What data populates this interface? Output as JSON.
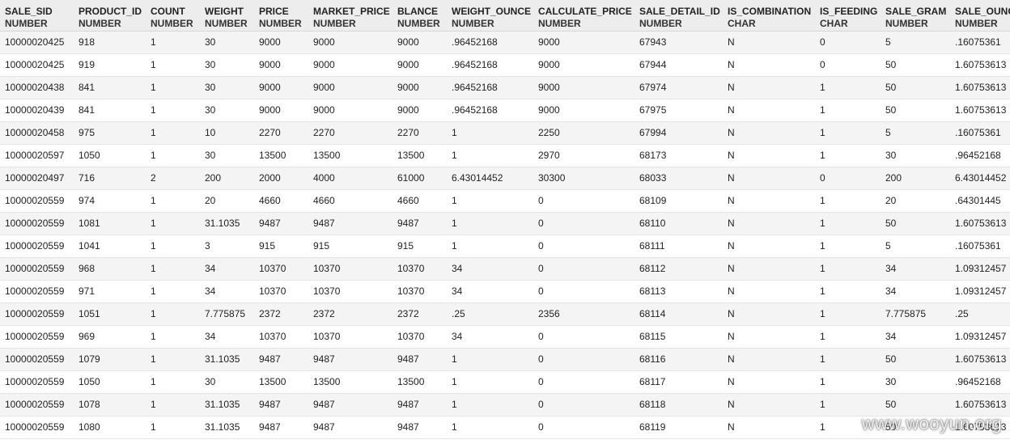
{
  "columns": [
    {
      "name": "SALE_SID",
      "type": "NUMBER"
    },
    {
      "name": "PRODUCT_ID",
      "type": "NUMBER"
    },
    {
      "name": "COUNT",
      "type": "NUMBER"
    },
    {
      "name": "WEIGHT",
      "type": "NUMBER"
    },
    {
      "name": "PRICE",
      "type": "NUMBER"
    },
    {
      "name": "MARKET_PRICE",
      "type": "NUMBER"
    },
    {
      "name": "BLANCE",
      "type": "NUMBER"
    },
    {
      "name": "WEIGHT_OUNCE",
      "type": "NUMBER"
    },
    {
      "name": "CALCULATE_PRICE",
      "type": "NUMBER"
    },
    {
      "name": "SALE_DETAIL_ID",
      "type": "NUMBER"
    },
    {
      "name": "IS_COMBINATION",
      "type": "CHAR"
    },
    {
      "name": "IS_FEEDING",
      "type": "CHAR"
    },
    {
      "name": "SALE_GRAM",
      "type": "NUMBER"
    },
    {
      "name": "SALE_OUNCE",
      "type": "NUMBER"
    }
  ],
  "rows": [
    [
      "10000020425",
      "918",
      "1",
      "30",
      "9000",
      "9000",
      "9000",
      ".96452168",
      "9000",
      "67943",
      "N",
      "0",
      "5",
      ".16075361"
    ],
    [
      "10000020425",
      "919",
      "1",
      "30",
      "9000",
      "9000",
      "9000",
      ".96452168",
      "9000",
      "67944",
      "N",
      "0",
      "50",
      "1.60753613"
    ],
    [
      "10000020438",
      "841",
      "1",
      "30",
      "9000",
      "9000",
      "9000",
      ".96452168",
      "9000",
      "67974",
      "N",
      "1",
      "50",
      "1.60753613"
    ],
    [
      "10000020439",
      "841",
      "1",
      "30",
      "9000",
      "9000",
      "9000",
      ".96452168",
      "9000",
      "67975",
      "N",
      "1",
      "50",
      "1.60753613"
    ],
    [
      "10000020458",
      "975",
      "1",
      "10",
      "2270",
      "2270",
      "2270",
      "1",
      "2250",
      "67994",
      "N",
      "1",
      "5",
      ".16075361"
    ],
    [
      "10000020597",
      "1050",
      "1",
      "30",
      "13500",
      "13500",
      "13500",
      "1",
      "2970",
      "68173",
      "N",
      "1",
      "30",
      ".96452168"
    ],
    [
      "10000020497",
      "716",
      "2",
      "200",
      "2000",
      "4000",
      "61000",
      "6.43014452",
      "30300",
      "68033",
      "N",
      "0",
      "200",
      "6.43014452"
    ],
    [
      "10000020559",
      "974",
      "1",
      "20",
      "4660",
      "4660",
      "4660",
      "1",
      "0",
      "68109",
      "N",
      "1",
      "20",
      ".64301445"
    ],
    [
      "10000020559",
      "1081",
      "1",
      "31.1035",
      "9487",
      "9487",
      "9487",
      "1",
      "0",
      "68110",
      "N",
      "1",
      "50",
      "1.60753613"
    ],
    [
      "10000020559",
      "1041",
      "1",
      "3",
      "915",
      "915",
      "915",
      "1",
      "0",
      "68111",
      "N",
      "1",
      "5",
      ".16075361"
    ],
    [
      "10000020559",
      "968",
      "1",
      "34",
      "10370",
      "10370",
      "10370",
      "34",
      "0",
      "68112",
      "N",
      "1",
      "34",
      "1.09312457"
    ],
    [
      "10000020559",
      "971",
      "1",
      "34",
      "10370",
      "10370",
      "10370",
      "34",
      "0",
      "68113",
      "N",
      "1",
      "34",
      "1.09312457"
    ],
    [
      "10000020559",
      "1051",
      "1",
      "7.775875",
      "2372",
      "2372",
      "2372",
      ".25",
      "2356",
      "68114",
      "N",
      "1",
      "7.775875",
      ".25"
    ],
    [
      "10000020559",
      "969",
      "1",
      "34",
      "10370",
      "10370",
      "10370",
      "34",
      "0",
      "68115",
      "N",
      "1",
      "34",
      "1.09312457"
    ],
    [
      "10000020559",
      "1079",
      "1",
      "31.1035",
      "9487",
      "9487",
      "9487",
      "1",
      "0",
      "68116",
      "N",
      "1",
      "50",
      "1.60753613"
    ],
    [
      "10000020559",
      "1050",
      "1",
      "30",
      "13500",
      "13500",
      "13500",
      "1",
      "0",
      "68117",
      "N",
      "1",
      "30",
      ".96452168"
    ],
    [
      "10000020559",
      "1078",
      "1",
      "31.1035",
      "9487",
      "9487",
      "9487",
      "1",
      "0",
      "68118",
      "N",
      "1",
      "50",
      "1.60753613"
    ],
    [
      "10000020559",
      "1080",
      "1",
      "31.1035",
      "9487",
      "9487",
      "9487",
      "1",
      "0",
      "68119",
      "N",
      "1",
      "50",
      "1.60753613"
    ]
  ],
  "watermark": "www.wooyun.org"
}
